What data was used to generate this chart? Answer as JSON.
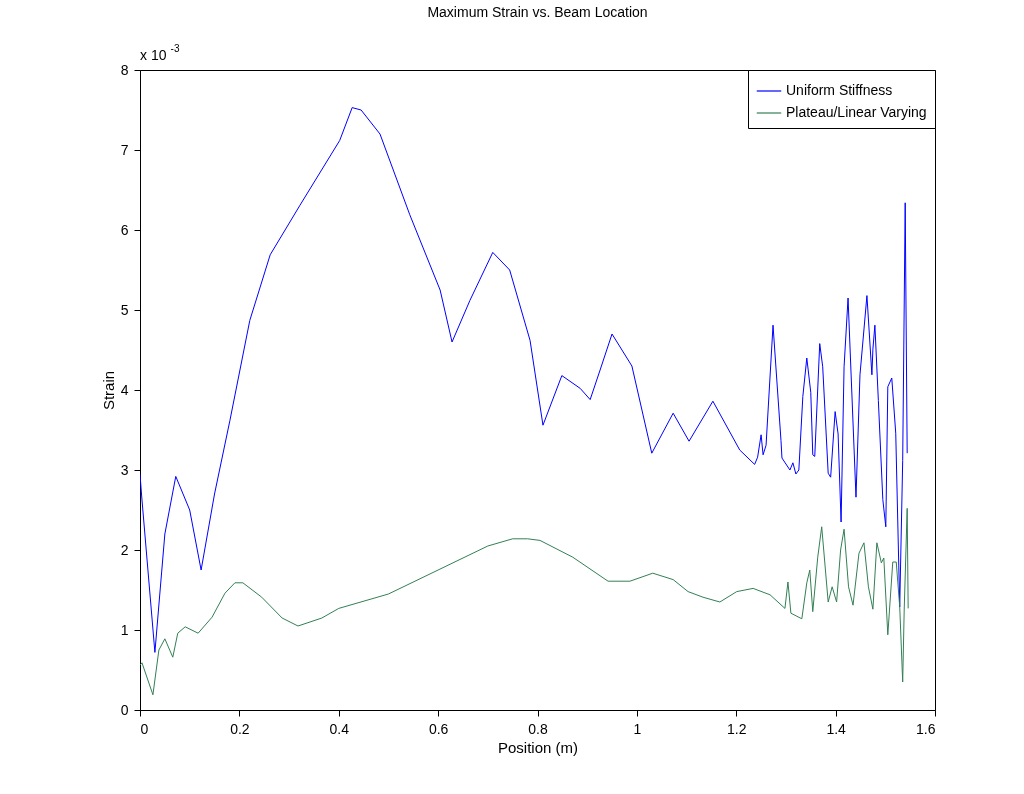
{
  "chart_data": {
    "type": "line",
    "title": "Maximum Strain vs. Beam Location",
    "xlabel": "Position (m)",
    "ylabel": "Strain",
    "annotations": [
      "x 10$^{-3}$"
    ],
    "xlim": [
      0,
      1.6
    ],
    "xticks": [
      0,
      0.2,
      0.4,
      0.6,
      0.8,
      1,
      1.2,
      1.4,
      1.6
    ],
    "ylim": [
      0,
      8
    ],
    "yticks": [
      0,
      1,
      2,
      3,
      4,
      5,
      6,
      7,
      8
    ],
    "legend": "top right",
    "grid": false,
    "marker": "none",
    "line_style": "solid",
    "series": [
      {
        "name": "Uniform Stiffness",
        "color": "#0000ff",
        "x": [
          0,
          0.003,
          0.03,
          0.05,
          0.072,
          0.1,
          0.123,
          0.15,
          0.181,
          0.221,
          0.262,
          0.322,
          0.402,
          0.427,
          0.445,
          0.483,
          0.543,
          0.604,
          0.628,
          0.664,
          0.71,
          0.744,
          0.785,
          0.811,
          0.849,
          0.886,
          0.906,
          0.926,
          0.95,
          0.99,
          1.03,
          1.073,
          1.105,
          1.153,
          1.207,
          1.237,
          1.243,
          1.25,
          1.254,
          1.26,
          1.274,
          1.29,
          1.292,
          1.308,
          1.314,
          1.32,
          1.326,
          1.334,
          1.342,
          1.35,
          1.354,
          1.358,
          1.368,
          1.374,
          1.385,
          1.39,
          1.399,
          1.405,
          1.411,
          1.417,
          1.425,
          1.441,
          1.449,
          1.463,
          1.473,
          1.475,
          1.479,
          1.486,
          1.495,
          1.501,
          1.505,
          1.513,
          1.521,
          1.529,
          1.535,
          1.54,
          1.544
        ],
        "values": [
          2.95,
          2.7,
          0.72,
          2.2,
          2.92,
          2.5,
          1.75,
          2.7,
          3.62,
          4.87,
          5.69,
          6.31,
          7.12,
          7.53,
          7.5,
          7.2,
          6.19,
          5.25,
          4.6,
          5.12,
          5.72,
          5.5,
          4.62,
          3.56,
          4.18,
          4.02,
          3.88,
          4.25,
          4.7,
          4.3,
          3.21,
          3.71,
          3.36,
          3.86,
          3.25,
          3.07,
          3.16,
          3.44,
          3.19,
          3.31,
          4.81,
          3.37,
          3.15,
          3.0,
          3.09,
          2.95,
          3.0,
          3.92,
          4.4,
          3.97,
          3.19,
          3.17,
          4.58,
          4.29,
          2.96,
          2.91,
          3.73,
          3.45,
          2.35,
          4.29,
          5.15,
          2.66,
          4.19,
          5.18,
          4.19,
          4.51,
          4.81,
          3.87,
          2.63,
          2.29,
          4.04,
          4.15,
          3.46,
          1.29,
          3.12,
          6.34,
          3.21
        ]
      },
      {
        "name": "Plateau/Linear Varying",
        "color": "#338055",
        "x": [
          0,
          0.004,
          0.026,
          0.038,
          0.05,
          0.066,
          0.076,
          0.091,
          0.117,
          0.145,
          0.171,
          0.191,
          0.207,
          0.245,
          0.286,
          0.318,
          0.366,
          0.4,
          0.5,
          0.6,
          0.7,
          0.75,
          0.78,
          0.805,
          0.871,
          0.942,
          0.986,
          1.032,
          1.073,
          1.103,
          1.133,
          1.167,
          1.201,
          1.234,
          1.268,
          1.298,
          1.304,
          1.31,
          1.332,
          1.342,
          1.348,
          1.354,
          1.364,
          1.372,
          1.385,
          1.393,
          1.402,
          1.41,
          1.417,
          1.426,
          1.435,
          1.447,
          1.457,
          1.466,
          1.475,
          1.483,
          1.492,
          1.497,
          1.505,
          1.515,
          1.522,
          1.529,
          1.535,
          1.538,
          1.544,
          1.546
        ],
        "values": [
          0.56,
          0.59,
          0.19,
          0.75,
          0.89,
          0.66,
          0.96,
          1.04,
          0.96,
          1.16,
          1.46,
          1.59,
          1.59,
          1.41,
          1.15,
          1.05,
          1.15,
          1.27,
          1.45,
          1.75,
          2.05,
          2.14,
          2.14,
          2.12,
          1.91,
          1.61,
          1.61,
          1.71,
          1.63,
          1.48,
          1.41,
          1.35,
          1.48,
          1.52,
          1.44,
          1.27,
          1.6,
          1.21,
          1.14,
          1.59,
          1.75,
          1.23,
          1.91,
          2.29,
          1.35,
          1.54,
          1.35,
          2.0,
          2.26,
          1.54,
          1.31,
          1.96,
          2.09,
          1.54,
          1.26,
          2.09,
          1.84,
          1.9,
          0.94,
          1.85,
          1.85,
          1.29,
          0.35,
          1.25,
          2.52,
          1.27
        ]
      }
    ]
  }
}
